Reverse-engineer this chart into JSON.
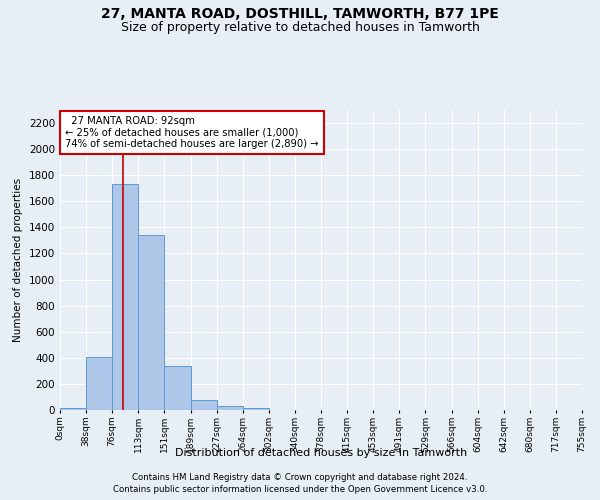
{
  "title": "27, MANTA ROAD, DOSTHILL, TAMWORTH, B77 1PE",
  "subtitle": "Size of property relative to detached houses in Tamworth",
  "xlabel": "Distribution of detached houses by size in Tamworth",
  "ylabel": "Number of detached properties",
  "footer_line1": "Contains HM Land Registry data © Crown copyright and database right 2024.",
  "footer_line2": "Contains public sector information licensed under the Open Government Licence v3.0.",
  "bin_labels": [
    "0sqm",
    "38sqm",
    "76sqm",
    "113sqm",
    "151sqm",
    "189sqm",
    "227sqm",
    "264sqm",
    "302sqm",
    "340sqm",
    "378sqm",
    "415sqm",
    "453sqm",
    "491sqm",
    "529sqm",
    "566sqm",
    "604sqm",
    "642sqm",
    "680sqm",
    "717sqm",
    "755sqm"
  ],
  "bar_values": [
    15,
    410,
    1735,
    1345,
    340,
    75,
    30,
    15,
    0,
    0,
    0,
    0,
    0,
    0,
    0,
    0,
    0,
    0,
    0,
    0
  ],
  "bar_color": "#aec6e8",
  "bar_edge_color": "#5a9bd5",
  "ylim": [
    0,
    2300
  ],
  "yticks": [
    0,
    200,
    400,
    600,
    800,
    1000,
    1200,
    1400,
    1600,
    1800,
    2000,
    2200
  ],
  "property_line_x": 92,
  "property_line_label": "27 MANTA ROAD: 92sqm",
  "annotation_line1": "← 25% of detached houses are smaller (1,000)",
  "annotation_line2": "74% of semi-detached houses are larger (2,890) →",
  "annotation_box_color": "#ffffff",
  "annotation_box_edge": "#cc0000",
  "bg_color": "#e8eef5",
  "grid_color": "#ffffff",
  "title_fontsize": 10,
  "subtitle_fontsize": 9,
  "bin_width": 38,
  "n_bins": 20
}
